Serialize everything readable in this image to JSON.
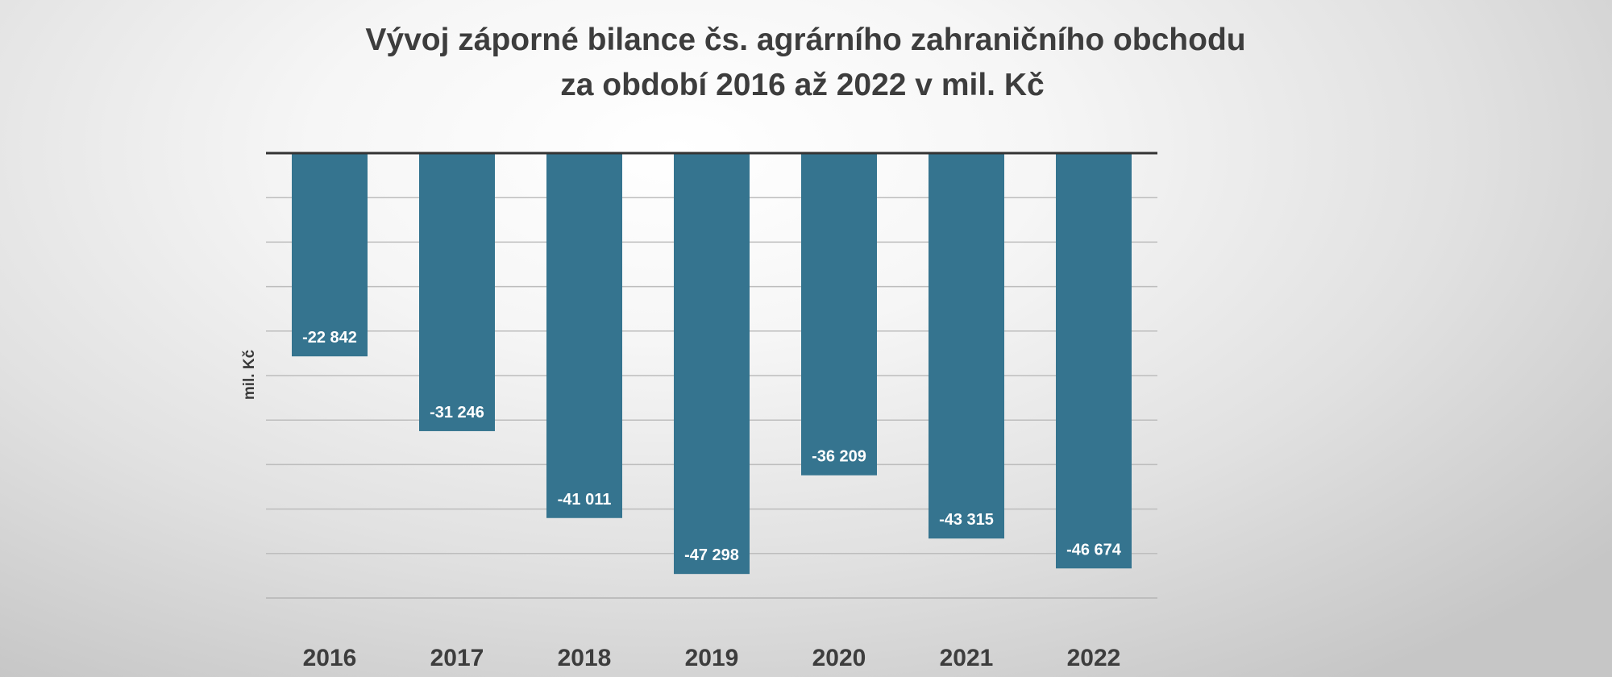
{
  "chart_data": {
    "type": "bar",
    "title_line1": "Vývoj záporné bilance čs. agrárního zahraničního obchodu",
    "title_line2": "za období 2016 až 2022 v mil. Kč",
    "ylabel": "mil. Kč",
    "xlabel": "",
    "categories": [
      "2016",
      "2017",
      "2018",
      "2019",
      "2020",
      "2021",
      "2022"
    ],
    "values": [
      -22842,
      -31246,
      -41011,
      -47298,
      -36209,
      -43315,
      -46674
    ],
    "value_labels": [
      "-22 842",
      "-31 246",
      "-41 011",
      "-47 298",
      "-36 209",
      "-43 315",
      "-46 674"
    ],
    "ylim": [
      -50000,
      0
    ],
    "grid_step": 5000,
    "grid": true,
    "legend": "none",
    "colors": {
      "bar": "#35748f",
      "bar_label": "#ffffff",
      "axis_line": "#333333",
      "grid": "#bdbdbd",
      "tick_label": "#3d3d3d"
    }
  }
}
